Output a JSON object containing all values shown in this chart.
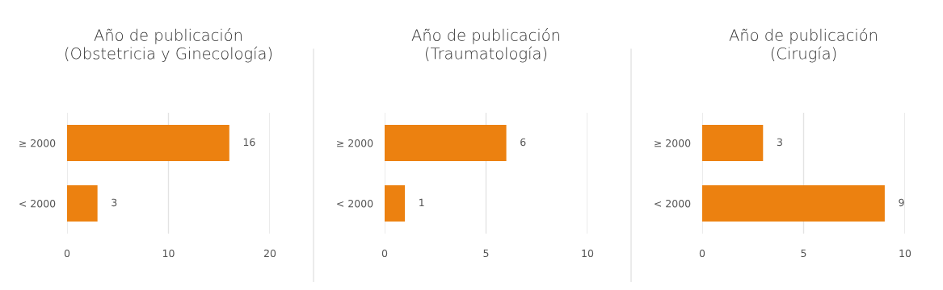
{
  "chart_data": [
    {
      "type": "bar",
      "orientation": "horizontal",
      "title": "Año de publicación\n(Obstetricia y Ginecología)",
      "categories": [
        "≥ 2000",
        "< 2000"
      ],
      "values": [
        16,
        3
      ],
      "color": "#ec8110",
      "xlim": [
        0,
        20
      ],
      "xticks": [
        0,
        10,
        20
      ],
      "grid": "x",
      "data_labels": true
    },
    {
      "type": "bar",
      "orientation": "horizontal",
      "title": "Año de publicación\n(Traumatología)",
      "categories": [
        "≥ 2000",
        "< 2000"
      ],
      "values": [
        6,
        1
      ],
      "color": "#ec8110",
      "xlim": [
        0,
        10
      ],
      "xticks": [
        0,
        5,
        10
      ],
      "grid": "x",
      "data_labels": true
    },
    {
      "type": "bar",
      "orientation": "horizontal",
      "title": "Año de publicación\n(Cirugía)",
      "categories": [
        "≥ 2000",
        "< 2000"
      ],
      "values": [
        3,
        9
      ],
      "color": "#ec8110",
      "xlim": [
        0,
        10
      ],
      "xticks": [
        0,
        5,
        10
      ],
      "grid": "x",
      "data_labels": true
    }
  ]
}
